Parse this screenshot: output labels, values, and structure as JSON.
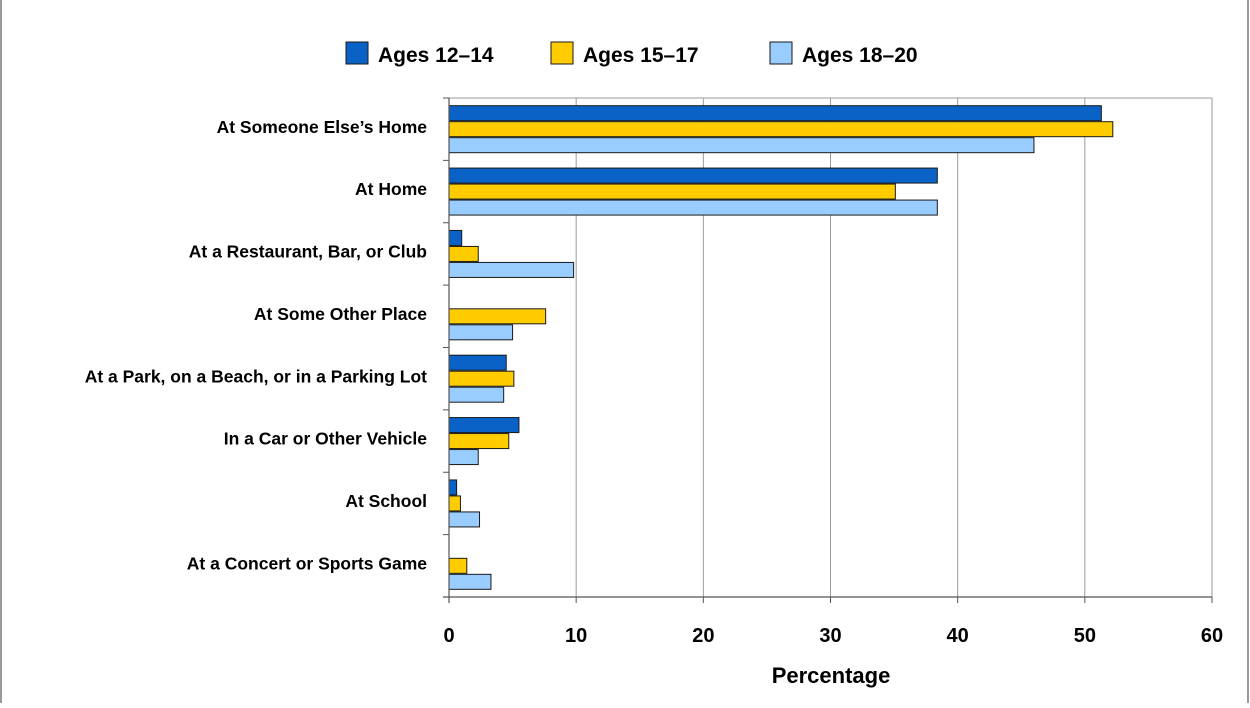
{
  "chart_data": {
    "type": "bar",
    "orientation": "horizontal",
    "categories": [
      "At Someone Else’s Home",
      "At Home",
      "At a Restaurant, Bar, or Club",
      "At Some Other Place",
      "At a Park, on a Beach, or in a Parking Lot",
      "In a Car or Other Vehicle",
      "At School",
      "At a Concert or Sports Game"
    ],
    "series": [
      {
        "name": "Ages 12–14",
        "color": "#0a62c6",
        "values": [
          51.3,
          38.4,
          1.0,
          null,
          4.5,
          5.5,
          0.6,
          null
        ]
      },
      {
        "name": "Ages 15–17",
        "color": "#ffcc00",
        "values": [
          52.2,
          35.1,
          2.3,
          7.6,
          5.1,
          4.7,
          0.9,
          1.4
        ]
      },
      {
        "name": "Ages 18–20",
        "color": "#99ccff",
        "values": [
          46.0,
          38.4,
          9.8,
          5.0,
          4.3,
          2.3,
          2.4,
          3.3
        ]
      }
    ],
    "xlabel": "Percentage",
    "ylabel": "",
    "xlim": [
      0,
      60
    ],
    "xticks": [
      "0",
      "10",
      "20",
      "30",
      "40",
      "50",
      "60"
    ],
    "grid": true,
    "legend": "top-center"
  }
}
